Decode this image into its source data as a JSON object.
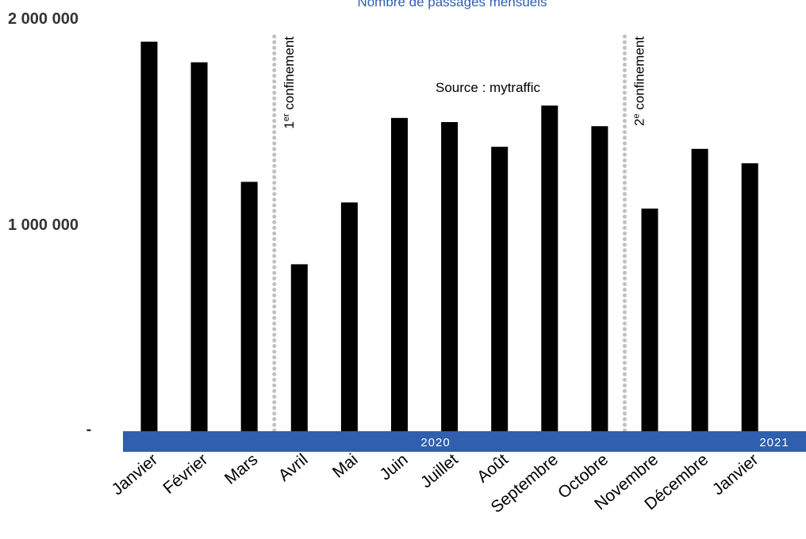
{
  "chart_data": {
    "type": "bar",
    "title": "Nombre de passages mensuels",
    "source": "Source : mytraffic",
    "categories": [
      "Janvier",
      "Février",
      "Mars",
      "Avril",
      "Mai",
      "Juin",
      "Juillet",
      "Août",
      "Septembre",
      "Octobre",
      "Novembre",
      "Décembre",
      "Janvier"
    ],
    "values": [
      1890000,
      1790000,
      1210000,
      810000,
      1110000,
      1520000,
      1500000,
      1380000,
      1580000,
      1480000,
      1080000,
      1370000,
      1300000
    ],
    "ylim": [
      0,
      2000000
    ],
    "y_ticks": [
      {
        "value": 2000000,
        "label": "2 000 000"
      },
      {
        "value": 1000000,
        "label": "1 000 000"
      },
      {
        "value": 0,
        "label": "-"
      }
    ],
    "years": [
      "2020",
      "2021"
    ],
    "annotations": [
      {
        "sup": "1",
        "sup_text": "er",
        "label": " confinement",
        "after_index": 2
      },
      {
        "sup": "2",
        "sup_text": "e",
        "label": " confinement",
        "after_index": 9
      }
    ],
    "grid": false,
    "bar_color": "#000000",
    "year_band_color": "#2f5fae",
    "title_color": "#2f5fae",
    "marker_line_color": "#c0c0c0"
  }
}
